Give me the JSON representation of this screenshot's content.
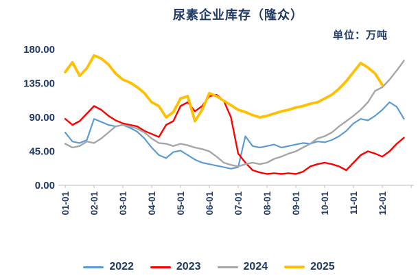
{
  "chart": {
    "title": "尿素企业库存（隆众）",
    "unit_label": "单位：万吨"
  },
  "chart_data": {
    "type": "line",
    "title": "尿素企业库存（隆众）",
    "unit": "万吨",
    "legend_position": "bottom",
    "grid": false,
    "text_color": "#1F3864",
    "axis_color": "#BFBFBF",
    "ylim": [
      0,
      180
    ],
    "y_ticks": [
      0,
      45,
      90,
      135,
      180
    ],
    "y_tick_labels": [
      "0.00",
      "45.00",
      "90.00",
      "135.00",
      "180.00"
    ],
    "x_tick_labels": [
      "01-01",
      "02-01",
      "03-01",
      "04-01",
      "05-01",
      "06-01",
      "07-01",
      "08-01",
      "09-01",
      "10-01",
      "11-01",
      "12-01"
    ],
    "points_per_month": 4,
    "series": [
      {
        "name": "2022",
        "color": "#5B9BD5",
        "stroke_width": 2.2,
        "values": [
          70,
          58,
          56,
          60,
          88,
          84,
          80,
          78,
          80,
          76,
          71,
          62,
          50,
          40,
          36,
          44,
          46,
          40,
          34,
          30,
          28,
          26,
          24,
          22,
          24,
          65,
          52,
          50,
          52,
          54,
          50,
          52,
          54,
          56,
          55,
          58,
          57,
          60,
          65,
          72,
          82,
          88,
          86,
          92,
          100,
          110,
          104,
          88
        ]
      },
      {
        "name": "2023",
        "color": "#FF0000",
        "stroke_width": 2.4,
        "values": [
          88,
          80,
          85,
          95,
          105,
          100,
          92,
          86,
          82,
          80,
          78,
          72,
          68,
          64,
          80,
          85,
          105,
          110,
          98,
          105,
          118,
          120,
          112,
          90,
          42,
          30,
          20,
          17,
          15,
          16,
          15,
          16,
          15,
          18,
          25,
          28,
          30,
          28,
          25,
          20,
          30,
          40,
          45,
          42,
          38,
          45,
          55,
          63
        ]
      },
      {
        "name": "2024",
        "color": "#A6A6A6",
        "stroke_width": 2.4,
        "values": [
          55,
          50,
          52,
          58,
          56,
          62,
          70,
          78,
          80,
          78,
          75,
          70,
          62,
          56,
          55,
          52,
          55,
          53,
          50,
          48,
          45,
          38,
          30,
          27,
          25,
          28,
          30,
          28,
          30,
          35,
          38,
          42,
          45,
          50,
          55,
          62,
          65,
          70,
          78,
          85,
          92,
          100,
          110,
          125,
          130,
          140,
          152,
          165
        ]
      },
      {
        "name": "2025",
        "color": "#FFC000",
        "stroke_width": 3.8,
        "values": [
          150,
          163,
          145,
          155,
          172,
          168,
          160,
          148,
          140,
          136,
          130,
          122,
          110,
          105,
          90,
          97,
          115,
          118,
          85,
          100,
          122,
          118,
          112,
          106,
          100,
          97,
          93,
          90,
          92,
          95,
          98,
          100,
          103,
          105,
          108,
          110,
          115,
          120,
          128,
          138,
          150,
          162,
          156,
          148,
          133
        ]
      }
    ]
  }
}
